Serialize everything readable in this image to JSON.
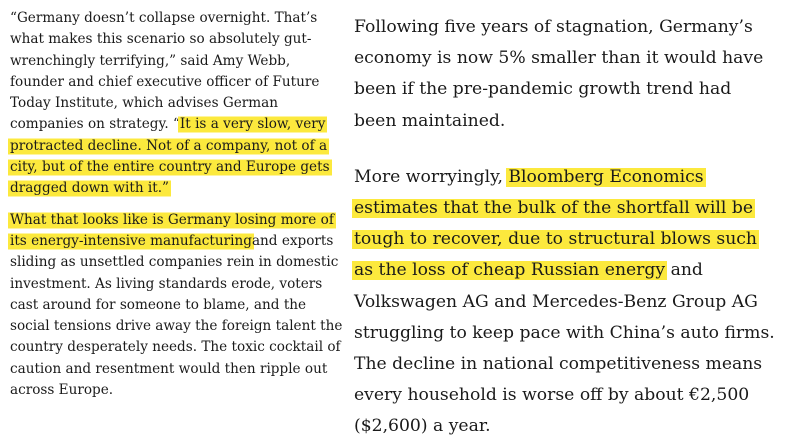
{
  "left_column": {
    "paragraph1": {
      "lines": [
        {
          "plain": "“Germany doesn’t collapse overnight. That’s"
        },
        {
          "plain": "what makes this scenario so absolutely gut-"
        },
        {
          "plain": "wrenchingly terrifying,” said Amy Webb,"
        },
        {
          "plain": "founder and chief executive officer of Future"
        },
        {
          "plain": "Today Institute, which advises German"
        },
        {
          "plain": "companies on strategy. “",
          "highlighted": "It is a very slow, very"
        },
        {
          "highlighted": "protracted decline. Not of a company, not of a"
        },
        {
          "highlighted": "city, but of the entire country and Europe gets"
        },
        {
          "highlighted": "dragged down with it.”"
        }
      ]
    },
    "paragraph2": {
      "lines": [
        {
          "highlighted": "What that looks like is Germany losing more of"
        },
        {
          "highlighted": "its energy-intensive manufacturing",
          "plain": "and exports"
        },
        {
          "plain": "sliding as unsettled companies rein in domestic"
        },
        {
          "plain": "investment. As living standards erode, voters"
        },
        {
          "plain": "cast around for someone to blame, and the"
        },
        {
          "plain": "social tensions drive away the foreign talent the"
        },
        {
          "plain": "country desperately needs. The toxic cocktail of"
        },
        {
          "plain": "caution and resentment would then ripple out"
        },
        {
          "plain": "across Europe."
        }
      ]
    }
  },
  "right_column": {
    "paragraph1": {
      "lines": [
        {
          "plain": "Following five years of stagnation, Germany’s"
        },
        {
          "plain": "economy is now 5% smaller than it would have"
        },
        {
          "plain": "been if the pre-pandemic growth trend had"
        },
        {
          "plain": "been maintained."
        }
      ]
    },
    "paragraph2": {
      "lines": [
        {
          "plain": "More worryingly, ",
          "highlighted": "Bloomberg Economics"
        },
        {
          "highlighted": "estimates that the bulk of the shortfall will be"
        },
        {
          "highlighted": "tough to recover, due to structural blows such"
        },
        {
          "highlighted": "as the loss of cheap Russian energy",
          "plain": " and"
        },
        {
          "plain": "Volkswagen AG and Mercedes-Benz Group AG"
        },
        {
          "plain": "struggling to keep pace with China’s auto firms."
        },
        {
          "plain": "The decline in national competitiveness means"
        },
        {
          "plain": "every household is worse off by about €2,500"
        },
        {
          "plain": "($2,600) a year."
        }
      ]
    }
  },
  "highlight_color": "#fce93d"
}
